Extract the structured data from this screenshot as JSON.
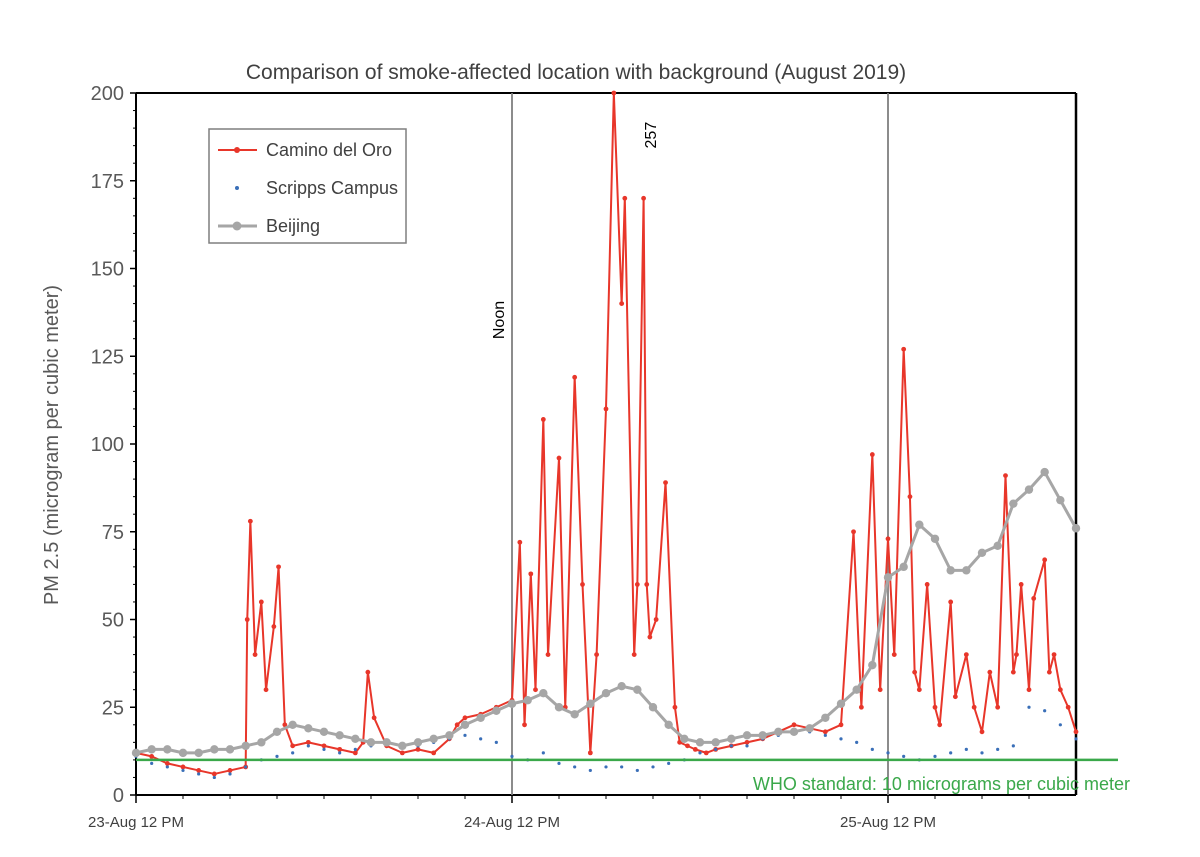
{
  "chart_data": {
    "type": "line",
    "title": "Comparison of smoke-affected location with background (August 2019)",
    "ylabel": "PM 2.5 (microgram per cubic meter)",
    "xlabel": "",
    "x_ticks": [
      "23-Aug 12 PM",
      "24-Aug 12 PM",
      "25-Aug 12 PM"
    ],
    "y_ticks": [
      0,
      25,
      50,
      75,
      100,
      125,
      150,
      175,
      200
    ],
    "ylim": [
      0,
      200
    ],
    "xlim_hours": [
      0,
      60
    ],
    "x_unit": "hours after 23-Aug 12 PM",
    "grid": false,
    "legend_position": "top-left",
    "reference_lines": [
      {
        "type": "vertical",
        "x": 24,
        "label": "Noon",
        "color": "#7f7f7f"
      },
      {
        "type": "vertical",
        "x": 48,
        "label": "",
        "color": "#7f7f7f"
      },
      {
        "type": "horizontal",
        "y": 10,
        "label": "WHO standard: 10 micrograms per cubic meter",
        "color": "#3aa84a"
      }
    ],
    "annotations": [
      {
        "text": "257",
        "x": 33.2,
        "y": 188
      }
    ],
    "series": [
      {
        "name": "Camino del Oro",
        "color": "#e8362a",
        "style": "line-markers",
        "x": [
          0,
          1,
          2,
          3,
          4,
          5,
          6,
          7,
          7.1,
          7.3,
          7.6,
          8,
          8.3,
          8.8,
          9.1,
          9.5,
          10,
          11,
          12,
          13,
          14,
          14.5,
          14.8,
          15.2,
          16,
          17,
          18,
          19,
          20,
          20.5,
          21,
          22,
          23,
          24,
          24.5,
          24.8,
          25.2,
          25.5,
          26,
          26.3,
          27,
          27.4,
          28,
          28.5,
          29,
          29.4,
          30,
          30.5,
          31,
          31.2,
          31.8,
          32,
          32.4,
          32.6,
          32.8,
          33.2,
          33.8,
          34.4,
          34.7,
          35.2,
          35.7,
          36.4,
          37,
          38,
          39,
          40,
          41,
          42,
          43,
          44,
          45,
          45.8,
          46.3,
          47,
          47.5,
          48,
          48.4,
          49,
          49.4,
          49.7,
          50,
          50.5,
          51,
          51.3,
          52,
          52.3,
          53,
          53.5,
          54,
          54.5,
          55,
          55.5,
          56,
          56.2,
          56.5,
          57,
          57.3,
          58,
          58.3,
          58.6,
          59,
          59.5,
          60
        ],
        "y": [
          12,
          11,
          9,
          8,
          7,
          6,
          7,
          8,
          50,
          78,
          40,
          55,
          30,
          48,
          65,
          20,
          14,
          15,
          14,
          13,
          12,
          15,
          35,
          22,
          14,
          12,
          13,
          12,
          16,
          20,
          22,
          23,
          25,
          27,
          72,
          20,
          63,
          30,
          107,
          40,
          96,
          25,
          119,
          60,
          12,
          40,
          110,
          200,
          140,
          170,
          40,
          60,
          170,
          60,
          45,
          50,
          89,
          25,
          15,
          14,
          13,
          12,
          13,
          14,
          15,
          16,
          18,
          20,
          19,
          18,
          20,
          75,
          25,
          97,
          30,
          73,
          40,
          127,
          85,
          35,
          30,
          60,
          25,
          20,
          55,
          28,
          40,
          25,
          18,
          35,
          25,
          91,
          35,
          40,
          60,
          30,
          56,
          67,
          35,
          40,
          30,
          25,
          18
        ]
      },
      {
        "name": "Scripps Campus",
        "color": "#3a6fb8",
        "style": "markers",
        "x": [
          0,
          1,
          2,
          3,
          4,
          5,
          6,
          7,
          8,
          9,
          10,
          11,
          12,
          13,
          14,
          15,
          16,
          17,
          18,
          19,
          20,
          21,
          22,
          23,
          24,
          25,
          26,
          27,
          28,
          29,
          30,
          31,
          32,
          33,
          34,
          35,
          36,
          37,
          38,
          39,
          40,
          41,
          42,
          43,
          44,
          45,
          46,
          47,
          48,
          49,
          50,
          51,
          52,
          53,
          54,
          55,
          56,
          57,
          58,
          59,
          60
        ],
        "y": [
          11,
          9,
          8,
          7,
          6,
          5,
          6,
          8,
          10,
          11,
          12,
          14,
          13,
          12,
          13,
          14,
          15,
          14,
          14,
          15,
          16,
          17,
          16,
          15,
          11,
          10,
          12,
          9,
          8,
          7,
          8,
          8,
          7,
          8,
          9,
          10,
          12,
          13,
          14,
          14,
          16,
          17,
          18,
          18,
          17,
          16,
          15,
          13,
          12,
          11,
          10,
          11,
          12,
          13,
          12,
          13,
          14,
          25,
          24,
          20,
          16
        ]
      },
      {
        "name": "Beijing",
        "color": "#a6a6a6",
        "style": "line-markers",
        "x": [
          0,
          1,
          2,
          3,
          4,
          5,
          6,
          7,
          8,
          9,
          10,
          11,
          12,
          13,
          14,
          15,
          16,
          17,
          18,
          19,
          20,
          21,
          22,
          23,
          24,
          25,
          26,
          27,
          28,
          29,
          30,
          31,
          32,
          33,
          34,
          35,
          36,
          37,
          38,
          39,
          40,
          41,
          42,
          43,
          44,
          45,
          46,
          47,
          48,
          49,
          50,
          51,
          52,
          53,
          54,
          55,
          56,
          57,
          58,
          59,
          60
        ],
        "y": [
          12,
          13,
          13,
          12,
          12,
          13,
          13,
          14,
          15,
          18,
          20,
          19,
          18,
          17,
          16,
          15,
          15,
          14,
          15,
          16,
          17,
          20,
          22,
          24,
          26,
          27,
          29,
          25,
          23,
          26,
          29,
          31,
          30,
          25,
          20,
          16,
          15,
          15,
          16,
          17,
          17,
          18,
          18,
          19,
          22,
          26,
          30,
          37,
          62,
          65,
          77,
          73,
          64,
          64,
          69,
          71,
          83,
          87,
          92,
          84,
          76
        ]
      }
    ]
  }
}
